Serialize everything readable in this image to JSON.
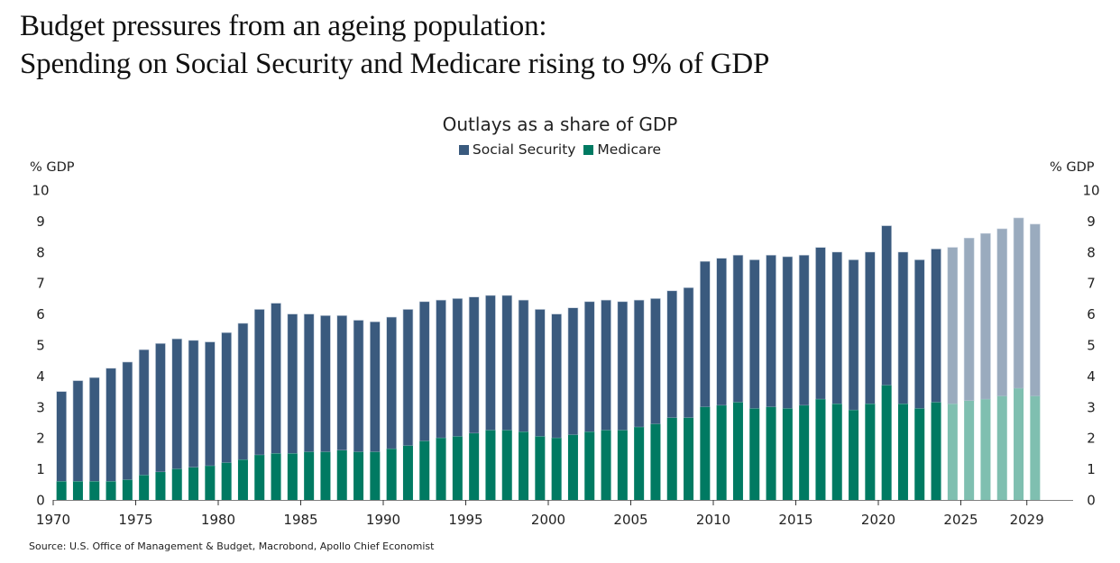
{
  "headline": {
    "line1": "Budget pressures from an ageing population:",
    "line2": "Spending on Social Security and Medicare rising to 9% of GDP"
  },
  "source": "Source: U.S. Office of Management & Budget, Macrobond, Apollo Chief Economist",
  "colors": {
    "social_security": "#3a5a7e",
    "medicare": "#007a62",
    "social_security_projected": "#9aabbe",
    "medicare_projected": "#7fbfb0",
    "axis": "#808080"
  },
  "chart_data": {
    "type": "bar",
    "stacked": true,
    "title": "Outlays as a share of GDP",
    "xlabel": "",
    "ylabel": "% GDP",
    "ylabel_right": "% GDP",
    "ylim": [
      0,
      10
    ],
    "yticks": [
      0,
      1,
      2,
      3,
      4,
      5,
      6,
      7,
      8,
      9,
      10
    ],
    "xticks": [
      "1970",
      "1975",
      "1980",
      "1985",
      "1990",
      "1995",
      "2000",
      "2005",
      "2010",
      "2015",
      "2020",
      "2025",
      "2029"
    ],
    "legend": [
      "Social Security",
      "Medicare"
    ],
    "legend_position": "top-center",
    "grid": false,
    "projection_start_year": 2024,
    "categories": [
      1970,
      1971,
      1972,
      1973,
      1974,
      1975,
      1976,
      1977,
      1978,
      1979,
      1980,
      1981,
      1982,
      1983,
      1984,
      1985,
      1986,
      1987,
      1988,
      1989,
      1990,
      1991,
      1992,
      1993,
      1994,
      1995,
      1996,
      1997,
      1998,
      1999,
      2000,
      2001,
      2002,
      2003,
      2004,
      2005,
      2006,
      2007,
      2008,
      2009,
      2010,
      2011,
      2012,
      2013,
      2014,
      2015,
      2016,
      2017,
      2018,
      2019,
      2020,
      2021,
      2022,
      2023,
      2024,
      2025,
      2026,
      2027,
      2028,
      2029
    ],
    "series": [
      {
        "name": "Medicare",
        "values": [
          0.6,
          0.6,
          0.6,
          0.6,
          0.65,
          0.8,
          0.9,
          1.0,
          1.05,
          1.1,
          1.2,
          1.3,
          1.45,
          1.5,
          1.5,
          1.55,
          1.55,
          1.6,
          1.55,
          1.55,
          1.65,
          1.75,
          1.9,
          2.0,
          2.05,
          2.15,
          2.25,
          2.25,
          2.2,
          2.05,
          2.0,
          2.1,
          2.2,
          2.25,
          2.25,
          2.35,
          2.45,
          2.65,
          2.65,
          3.0,
          3.05,
          3.15,
          2.95,
          3.0,
          2.95,
          3.05,
          3.25,
          3.1,
          2.9,
          3.1,
          3.7,
          3.1,
          2.95,
          3.15,
          3.1,
          3.2,
          3.25,
          3.35,
          3.6,
          3.35
        ]
      },
      {
        "name": "Social Security",
        "values": [
          2.9,
          3.25,
          3.35,
          3.65,
          3.8,
          4.05,
          4.15,
          4.2,
          4.1,
          4.0,
          4.2,
          4.4,
          4.7,
          4.85,
          4.5,
          4.45,
          4.4,
          4.35,
          4.25,
          4.2,
          4.25,
          4.4,
          4.5,
          4.45,
          4.45,
          4.4,
          4.35,
          4.35,
          4.25,
          4.1,
          4.0,
          4.1,
          4.2,
          4.2,
          4.15,
          4.1,
          4.05,
          4.1,
          4.2,
          4.7,
          4.75,
          4.75,
          4.8,
          4.9,
          4.9,
          4.85,
          4.9,
          4.9,
          4.85,
          4.9,
          5.15,
          4.9,
          4.8,
          4.95,
          5.05,
          5.25,
          5.35,
          5.4,
          5.5,
          5.55
        ]
      }
    ]
  }
}
